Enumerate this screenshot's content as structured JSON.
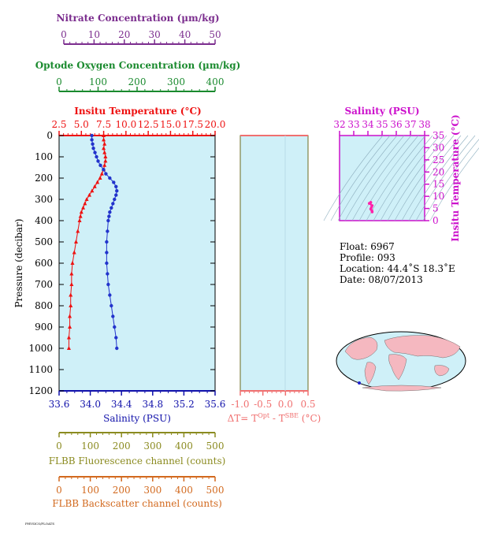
{
  "colors": {
    "nitrate": "#7B2D8E",
    "oxygen": "#1A8A2E",
    "temperature": "#EE1111",
    "salinity": "#1111AA",
    "delta": "#F07070",
    "tsdiagram": "#CC11CC",
    "fluorescence": "#8B8B20",
    "backscatter": "#D2691E",
    "plotbg": "#CFF0F8",
    "land": "#F5B8C0"
  },
  "axes": {
    "nitrate": {
      "label": "Nitrate Concentration (µm/kg)",
      "range": [
        0,
        50
      ],
      "ticks": [
        "0",
        "10",
        "20",
        "30",
        "40",
        "50"
      ]
    },
    "oxygen": {
      "label": "Optode Oxygen Concentration (µm/kg)",
      "range": [
        0,
        400
      ],
      "ticks": [
        "0",
        "100",
        "200",
        "300",
        "400"
      ]
    },
    "temperature": {
      "label": "Insitu Temperature (°C)",
      "range": [
        2.5,
        20.0
      ],
      "ticks": [
        "2.5",
        "5.0",
        "7.5",
        "10.0",
        "12.5",
        "15.0",
        "17.5",
        "20.0"
      ]
    },
    "salinity": {
      "label": "Salinity (PSU)",
      "range": [
        33.6,
        35.6
      ],
      "ticks": [
        "33.6",
        "34.0",
        "34.4",
        "34.8",
        "35.2",
        "35.6"
      ]
    },
    "pressure": {
      "label": "Pressure (decibar)",
      "range": [
        0,
        1200
      ],
      "ticks": [
        "0",
        "100",
        "200",
        "300",
        "400",
        "500",
        "600",
        "700",
        "800",
        "900",
        "1000",
        "1100",
        "1200"
      ]
    },
    "delta": {
      "label": "ΔT= T",
      "sup1": "Opt",
      "mid": " - T",
      "sup2": "SBE",
      "unit": " (°C)",
      "range": [
        -1.0,
        0.5
      ],
      "ticks": [
        "-1.0",
        "-0.5",
        "0.0",
        "0.5"
      ]
    },
    "fluorescence": {
      "label": "FLBB Fluorescence channel (counts)",
      "range": [
        0,
        500
      ],
      "ticks": [
        "0",
        "100",
        "200",
        "300",
        "400",
        "500"
      ]
    },
    "backscatter": {
      "label": "FLBB Backscatter channel (counts)",
      "range": [
        0,
        500
      ],
      "ticks": [
        "0",
        "100",
        "200",
        "300",
        "400",
        "500"
      ]
    },
    "ts_salinity": {
      "label": "Salinity (PSU)",
      "range": [
        32,
        38
      ],
      "ticks": [
        "32",
        "33",
        "34",
        "35",
        "36",
        "37",
        "38"
      ]
    },
    "ts_temperature": {
      "label": "Insitu Temperature (°C)",
      "range": [
        0,
        35
      ],
      "ticks": [
        "0",
        "5",
        "10",
        "15",
        "20",
        "25",
        "30",
        "35"
      ]
    }
  },
  "info": {
    "float": "Float:  6967",
    "profile": "Profile:  093",
    "location": "Location:  44.4˚S  18.3˚E",
    "date": "Date:  08/07/2013"
  },
  "footer_tag": "PHYSICS/FLOATS",
  "chart_data": [
    {
      "type": "line",
      "name": "temperature-profile",
      "xlabel": "Insitu Temperature (°C)",
      "ylabel": "Pressure (decibar)",
      "xlim": [
        2.5,
        20.0
      ],
      "ylim": [
        1200,
        0
      ],
      "points": [
        [
          7.5,
          0
        ],
        [
          7.5,
          20
        ],
        [
          7.6,
          40
        ],
        [
          7.5,
          60
        ],
        [
          7.6,
          80
        ],
        [
          7.7,
          100
        ],
        [
          7.7,
          120
        ],
        [
          7.6,
          140
        ],
        [
          7.5,
          160
        ],
        [
          7.3,
          180
        ],
        [
          7.1,
          200
        ],
        [
          6.8,
          220
        ],
        [
          6.5,
          240
        ],
        [
          6.2,
          260
        ],
        [
          5.9,
          280
        ],
        [
          5.6,
          300
        ],
        [
          5.4,
          320
        ],
        [
          5.2,
          340
        ],
        [
          5.0,
          360
        ],
        [
          4.9,
          380
        ],
        [
          4.8,
          400
        ],
        [
          4.6,
          450
        ],
        [
          4.4,
          500
        ],
        [
          4.2,
          550
        ],
        [
          4.0,
          600
        ],
        [
          3.9,
          650
        ],
        [
          3.9,
          700
        ],
        [
          3.8,
          750
        ],
        [
          3.8,
          800
        ],
        [
          3.7,
          850
        ],
        [
          3.7,
          900
        ],
        [
          3.6,
          950
        ],
        [
          3.6,
          1000
        ]
      ]
    },
    {
      "type": "line",
      "name": "salinity-profile",
      "xlabel": "Salinity (PSU)",
      "ylabel": "Pressure (decibar)",
      "xlim": [
        33.6,
        35.6
      ],
      "ylim": [
        1200,
        0
      ],
      "points": [
        [
          34.02,
          0
        ],
        [
          34.02,
          20
        ],
        [
          34.03,
          40
        ],
        [
          34.04,
          60
        ],
        [
          34.06,
          80
        ],
        [
          34.08,
          100
        ],
        [
          34.1,
          120
        ],
        [
          34.13,
          140
        ],
        [
          34.17,
          160
        ],
        [
          34.2,
          180
        ],
        [
          34.25,
          200
        ],
        [
          34.3,
          220
        ],
        [
          34.33,
          240
        ],
        [
          34.34,
          260
        ],
        [
          34.33,
          280
        ],
        [
          34.31,
          300
        ],
        [
          34.29,
          320
        ],
        [
          34.27,
          340
        ],
        [
          34.25,
          360
        ],
        [
          34.24,
          380
        ],
        [
          34.23,
          400
        ],
        [
          34.22,
          450
        ],
        [
          34.21,
          500
        ],
        [
          34.21,
          550
        ],
        [
          34.21,
          600
        ],
        [
          34.22,
          650
        ],
        [
          34.23,
          700
        ],
        [
          34.25,
          750
        ],
        [
          34.27,
          800
        ],
        [
          34.29,
          850
        ],
        [
          34.31,
          900
        ],
        [
          34.33,
          950
        ],
        [
          34.34,
          1000
        ]
      ]
    },
    {
      "type": "scatter",
      "name": "ts-diagram",
      "xlabel": "Salinity (PSU)",
      "ylabel": "Insitu Temperature (°C)",
      "xlim": [
        32,
        38
      ],
      "ylim": [
        0,
        35
      ],
      "points": [
        [
          34.2,
          7.5
        ],
        [
          34.1,
          7.1
        ],
        [
          34.3,
          6.2
        ],
        [
          34.25,
          5.5
        ],
        [
          34.2,
          4.8
        ],
        [
          34.28,
          4.1
        ],
        [
          34.3,
          3.6
        ]
      ]
    }
  ]
}
